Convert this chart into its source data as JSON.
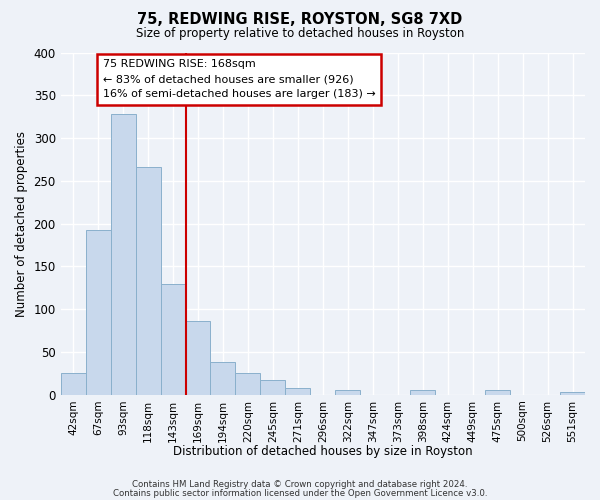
{
  "title": "75, REDWING RISE, ROYSTON, SG8 7XD",
  "subtitle": "Size of property relative to detached houses in Royston",
  "xlabel": "Distribution of detached houses by size in Royston",
  "ylabel": "Number of detached properties",
  "bar_labels": [
    "42sqm",
    "67sqm",
    "93sqm",
    "118sqm",
    "143sqm",
    "169sqm",
    "194sqm",
    "220sqm",
    "245sqm",
    "271sqm",
    "296sqm",
    "322sqm",
    "347sqm",
    "373sqm",
    "398sqm",
    "424sqm",
    "449sqm",
    "475sqm",
    "500sqm",
    "526sqm",
    "551sqm"
  ],
  "bar_values": [
    25,
    193,
    328,
    266,
    130,
    86,
    38,
    25,
    17,
    8,
    0,
    5,
    0,
    0,
    5,
    0,
    0,
    5,
    0,
    0,
    3
  ],
  "bar_color": "#c8d8ec",
  "bar_edge_color": "#8ab0cc",
  "ylim": [
    0,
    400
  ],
  "yticks": [
    0,
    50,
    100,
    150,
    200,
    250,
    300,
    350,
    400
  ],
  "vline_index": 5,
  "vline_color": "#cc0000",
  "annotation_title": "75 REDWING RISE: 168sqm",
  "annotation_line1": "← 83% of detached houses are smaller (926)",
  "annotation_line2": "16% of semi-detached houses are larger (183) →",
  "annotation_box_edge": "#cc0000",
  "footer_line1": "Contains HM Land Registry data © Crown copyright and database right 2024.",
  "footer_line2": "Contains public sector information licensed under the Open Government Licence v3.0.",
  "background_color": "#eef2f8",
  "grid_color": "#d0d8e8"
}
